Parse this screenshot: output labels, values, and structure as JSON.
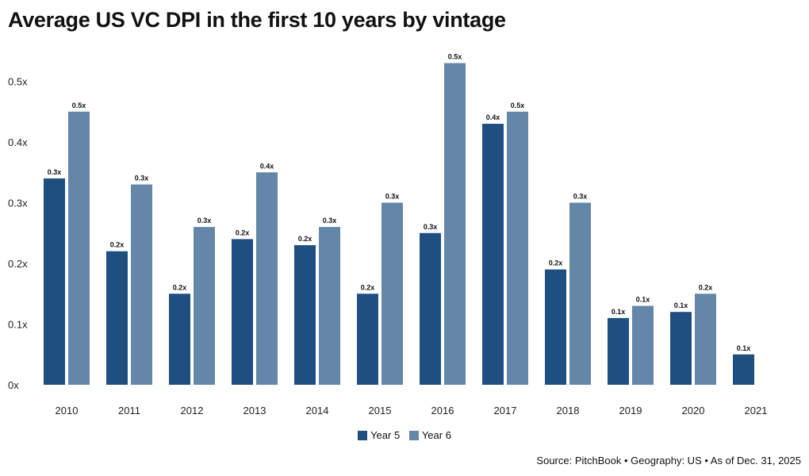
{
  "colors": {
    "year5": "#1f4e80",
    "year6": "#6386a9"
  },
  "chart_data": {
    "type": "bar",
    "title": "Average US VC DPI in the first 10 years by vintage",
    "categories": [
      "2010",
      "2011",
      "2012",
      "2013",
      "2014",
      "2015",
      "2016",
      "2017",
      "2018",
      "2019",
      "2020",
      "2021"
    ],
    "series": [
      {
        "name": "Year 5",
        "values": [
          0.34,
          0.22,
          0.15,
          0.24,
          0.23,
          0.15,
          0.25,
          0.43,
          0.19,
          0.11,
          0.12,
          0.05
        ],
        "labels": [
          "0.3x",
          "0.2x",
          "0.2x",
          "0.2x",
          "0.2x",
          "0.2x",
          "0.3x",
          "0.4x",
          "0.2x",
          "0.1x",
          "0.1x",
          "0.1x"
        ]
      },
      {
        "name": "Year 6",
        "values": [
          0.45,
          0.33,
          0.26,
          0.35,
          0.26,
          0.3,
          0.53,
          0.45,
          0.3,
          0.13,
          0.15,
          null
        ],
        "labels": [
          "0.5x",
          "0.3x",
          "0.3x",
          "0.4x",
          "0.3x",
          "0.3x",
          "0.5x",
          "0.5x",
          "0.3x",
          "0.1x",
          "0.2x",
          null
        ]
      }
    ],
    "yticks": [
      {
        "value": 0,
        "label": "0x"
      },
      {
        "value": 0.1,
        "label": "0.1x"
      },
      {
        "value": 0.2,
        "label": "0.2x"
      },
      {
        "value": 0.3,
        "label": "0.3x"
      },
      {
        "value": 0.4,
        "label": "0.4x"
      },
      {
        "value": 0.5,
        "label": "0.5x"
      }
    ],
    "ylim": [
      0,
      0.5
    ],
    "grid": false,
    "legend_position": "bottom-center"
  },
  "source": "Source: PitchBook • Geography: US • As of Dec. 31, 2025"
}
